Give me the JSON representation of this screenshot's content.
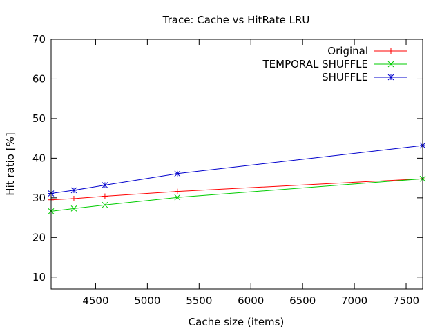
{
  "chart_data": {
    "type": "line",
    "title": "Trace: Cache vs HitRate LRU",
    "xlabel": "Cache size (items)",
    "ylabel": "Hit ratio [%]",
    "xlim": [
      4070,
      7660
    ],
    "ylim": [
      7,
      70
    ],
    "xticks": [
      4500,
      5000,
      5500,
      6000,
      6500,
      7000,
      7500
    ],
    "yticks": [
      10,
      20,
      30,
      40,
      50,
      60,
      70
    ],
    "grid": false,
    "legend_position": "top-right",
    "series": [
      {
        "name": "Original",
        "color": "#ff0000",
        "marker": "plus",
        "x": [
          4070,
          4290,
          4590,
          5290,
          7660
        ],
        "y": [
          29.5,
          29.8,
          30.4,
          31.6,
          34.8
        ]
      },
      {
        "name": "TEMPORAL SHUFFLE",
        "color": "#00cc00",
        "marker": "cross",
        "x": [
          4070,
          4290,
          4590,
          5290,
          7660
        ],
        "y": [
          26.6,
          27.3,
          28.2,
          30.1,
          34.8
        ]
      },
      {
        "name": "SHUFFLE",
        "color": "#0000cc",
        "marker": "star",
        "x": [
          4070,
          4290,
          4590,
          5290,
          7660
        ],
        "y": [
          31.1,
          31.9,
          33.2,
          36.1,
          43.2
        ]
      }
    ]
  }
}
